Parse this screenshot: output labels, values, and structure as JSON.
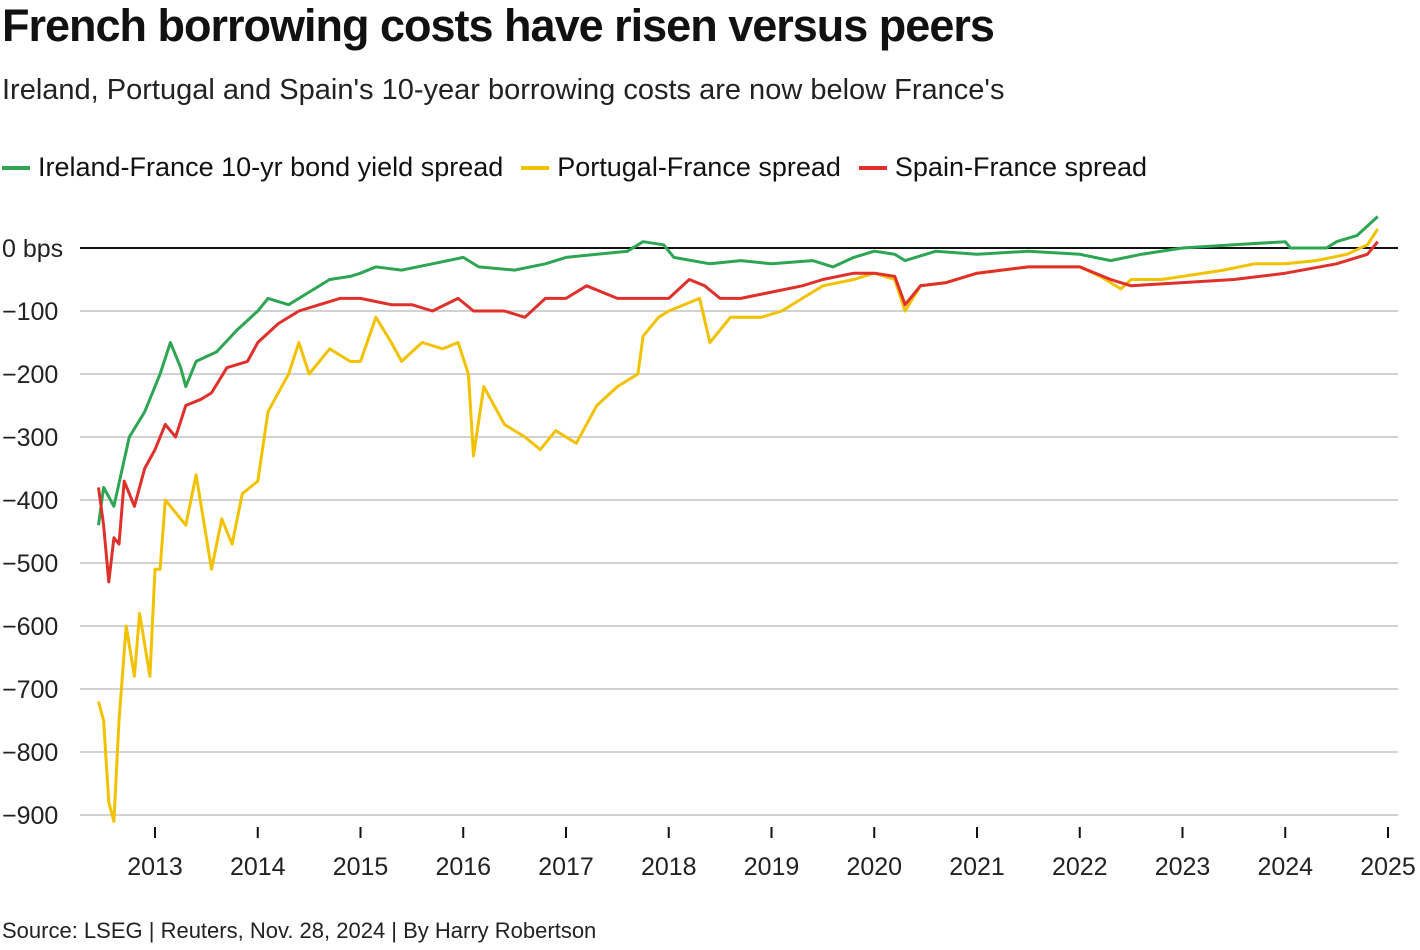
{
  "title": "French borrowing costs have risen versus peers",
  "subtitle": "Ireland, Portugal and Spain's 10-year borrowing costs are now below France's",
  "source": "Source: LSEG | Reuters, Nov. 28, 2024 | By Harry Robertson",
  "chart_data": {
    "type": "line",
    "title": "French borrowing costs have risen versus peers",
    "ylim": [
      -920,
      70
    ],
    "xlim": [
      2012.4,
      2025
    ],
    "grid": true,
    "legend_position": "top",
    "y_ticks": [
      {
        "v": 0,
        "label": "0 bps"
      },
      {
        "v": -100,
        "label": "−100"
      },
      {
        "v": -200,
        "label": "−200"
      },
      {
        "v": -300,
        "label": "−300"
      },
      {
        "v": -400,
        "label": "−400"
      },
      {
        "v": -500,
        "label": "−500"
      },
      {
        "v": -600,
        "label": "−600"
      },
      {
        "v": -700,
        "label": "−700"
      },
      {
        "v": -800,
        "label": "−800"
      },
      {
        "v": -900,
        "label": "−900"
      }
    ],
    "x_ticks": [
      "2013",
      "2014",
      "2015",
      "2016",
      "2017",
      "2018",
      "2019",
      "2020",
      "2021",
      "2022",
      "2023",
      "2024",
      "2025"
    ],
    "series": [
      {
        "name": "Ireland-France 10-yr bond yield spread",
        "color": "#2ea552",
        "points": [
          [
            2012.45,
            -440
          ],
          [
            2012.5,
            -380
          ],
          [
            2012.6,
            -410
          ],
          [
            2012.75,
            -300
          ],
          [
            2012.9,
            -260
          ],
          [
            2013.05,
            -200
          ],
          [
            2013.15,
            -150
          ],
          [
            2013.25,
            -190
          ],
          [
            2013.3,
            -220
          ],
          [
            2013.4,
            -180
          ],
          [
            2013.6,
            -165
          ],
          [
            2013.8,
            -130
          ],
          [
            2014.0,
            -100
          ],
          [
            2014.1,
            -80
          ],
          [
            2014.3,
            -90
          ],
          [
            2014.5,
            -70
          ],
          [
            2014.7,
            -50
          ],
          [
            2014.9,
            -45
          ],
          [
            2015.0,
            -40
          ],
          [
            2015.15,
            -30
          ],
          [
            2015.4,
            -35
          ],
          [
            2015.7,
            -25
          ],
          [
            2016.0,
            -15
          ],
          [
            2016.15,
            -30
          ],
          [
            2016.5,
            -35
          ],
          [
            2016.8,
            -25
          ],
          [
            2017.0,
            -15
          ],
          [
            2017.3,
            -10
          ],
          [
            2017.6,
            -5
          ],
          [
            2017.75,
            10
          ],
          [
            2017.95,
            5
          ],
          [
            2018.05,
            -15
          ],
          [
            2018.4,
            -25
          ],
          [
            2018.7,
            -20
          ],
          [
            2019.0,
            -25
          ],
          [
            2019.4,
            -20
          ],
          [
            2019.6,
            -30
          ],
          [
            2019.8,
            -15
          ],
          [
            2020.0,
            -5
          ],
          [
            2020.2,
            -10
          ],
          [
            2020.3,
            -20
          ],
          [
            2020.6,
            -5
          ],
          [
            2021.0,
            -10
          ],
          [
            2021.5,
            -5
          ],
          [
            2022.0,
            -10
          ],
          [
            2022.3,
            -20
          ],
          [
            2022.6,
            -10
          ],
          [
            2023.0,
            0
          ],
          [
            2023.5,
            5
          ],
          [
            2024.0,
            10
          ],
          [
            2024.05,
            0
          ],
          [
            2024.4,
            0
          ],
          [
            2024.5,
            10
          ],
          [
            2024.7,
            20
          ],
          [
            2024.9,
            50
          ]
        ]
      },
      {
        "name": "Portugal-France spread",
        "color": "#f2c200",
        "points": [
          [
            2012.45,
            -720
          ],
          [
            2012.5,
            -750
          ],
          [
            2012.55,
            -880
          ],
          [
            2012.6,
            -910
          ],
          [
            2012.65,
            -750
          ],
          [
            2012.72,
            -600
          ],
          [
            2012.8,
            -680
          ],
          [
            2012.85,
            -580
          ],
          [
            2012.95,
            -680
          ],
          [
            2013.0,
            -510
          ],
          [
            2013.05,
            -510
          ],
          [
            2013.1,
            -400
          ],
          [
            2013.2,
            -420
          ],
          [
            2013.3,
            -440
          ],
          [
            2013.4,
            -360
          ],
          [
            2013.5,
            -460
          ],
          [
            2013.55,
            -510
          ],
          [
            2013.65,
            -430
          ],
          [
            2013.75,
            -470
          ],
          [
            2013.85,
            -390
          ],
          [
            2014.0,
            -370
          ],
          [
            2014.1,
            -260
          ],
          [
            2014.3,
            -200
          ],
          [
            2014.4,
            -150
          ],
          [
            2014.5,
            -200
          ],
          [
            2014.7,
            -160
          ],
          [
            2014.9,
            -180
          ],
          [
            2015.0,
            -180
          ],
          [
            2015.15,
            -110
          ],
          [
            2015.3,
            -150
          ],
          [
            2015.4,
            -180
          ],
          [
            2015.6,
            -150
          ],
          [
            2015.8,
            -160
          ],
          [
            2015.95,
            -150
          ],
          [
            2016.05,
            -200
          ],
          [
            2016.1,
            -330
          ],
          [
            2016.2,
            -220
          ],
          [
            2016.4,
            -280
          ],
          [
            2016.6,
            -300
          ],
          [
            2016.75,
            -320
          ],
          [
            2016.9,
            -290
          ],
          [
            2017.1,
            -310
          ],
          [
            2017.3,
            -250
          ],
          [
            2017.5,
            -220
          ],
          [
            2017.7,
            -200
          ],
          [
            2017.75,
            -140
          ],
          [
            2017.9,
            -110
          ],
          [
            2018.0,
            -100
          ],
          [
            2018.3,
            -80
          ],
          [
            2018.4,
            -150
          ],
          [
            2018.6,
            -110
          ],
          [
            2018.9,
            -110
          ],
          [
            2019.1,
            -100
          ],
          [
            2019.3,
            -80
          ],
          [
            2019.5,
            -60
          ],
          [
            2019.8,
            -50
          ],
          [
            2020.0,
            -40
          ],
          [
            2020.2,
            -50
          ],
          [
            2020.3,
            -100
          ],
          [
            2020.45,
            -60
          ],
          [
            2020.7,
            -55
          ],
          [
            2021.0,
            -40
          ],
          [
            2021.5,
            -30
          ],
          [
            2022.0,
            -30
          ],
          [
            2022.2,
            -45
          ],
          [
            2022.4,
            -65
          ],
          [
            2022.5,
            -50
          ],
          [
            2022.8,
            -50
          ],
          [
            2023.0,
            -45
          ],
          [
            2023.4,
            -35
          ],
          [
            2023.7,
            -25
          ],
          [
            2024.0,
            -25
          ],
          [
            2024.3,
            -20
          ],
          [
            2024.6,
            -10
          ],
          [
            2024.8,
            5
          ],
          [
            2024.9,
            30
          ]
        ]
      },
      {
        "name": "Spain-France spread",
        "color": "#e0302b",
        "points": [
          [
            2012.45,
            -380
          ],
          [
            2012.5,
            -440
          ],
          [
            2012.55,
            -530
          ],
          [
            2012.6,
            -460
          ],
          [
            2012.65,
            -470
          ],
          [
            2012.7,
            -370
          ],
          [
            2012.8,
            -410
          ],
          [
            2012.9,
            -350
          ],
          [
            2013.0,
            -320
          ],
          [
            2013.1,
            -280
          ],
          [
            2013.2,
            -300
          ],
          [
            2013.3,
            -250
          ],
          [
            2013.45,
            -240
          ],
          [
            2013.55,
            -230
          ],
          [
            2013.7,
            -190
          ],
          [
            2013.9,
            -180
          ],
          [
            2014.0,
            -150
          ],
          [
            2014.2,
            -120
          ],
          [
            2014.4,
            -100
          ],
          [
            2014.6,
            -90
          ],
          [
            2014.8,
            -80
          ],
          [
            2015.0,
            -80
          ],
          [
            2015.3,
            -90
          ],
          [
            2015.5,
            -90
          ],
          [
            2015.7,
            -100
          ],
          [
            2015.95,
            -80
          ],
          [
            2016.1,
            -100
          ],
          [
            2016.4,
            -100
          ],
          [
            2016.6,
            -110
          ],
          [
            2016.8,
            -80
          ],
          [
            2017.0,
            -80
          ],
          [
            2017.2,
            -60
          ],
          [
            2017.5,
            -80
          ],
          [
            2017.8,
            -80
          ],
          [
            2018.0,
            -80
          ],
          [
            2018.2,
            -50
          ],
          [
            2018.35,
            -60
          ],
          [
            2018.5,
            -80
          ],
          [
            2018.7,
            -80
          ],
          [
            2019.0,
            -70
          ],
          [
            2019.3,
            -60
          ],
          [
            2019.5,
            -50
          ],
          [
            2019.8,
            -40
          ],
          [
            2020.0,
            -40
          ],
          [
            2020.2,
            -45
          ],
          [
            2020.3,
            -90
          ],
          [
            2020.45,
            -60
          ],
          [
            2020.7,
            -55
          ],
          [
            2021.0,
            -40
          ],
          [
            2021.5,
            -30
          ],
          [
            2022.0,
            -30
          ],
          [
            2022.3,
            -50
          ],
          [
            2022.5,
            -60
          ],
          [
            2023.0,
            -55
          ],
          [
            2023.5,
            -50
          ],
          [
            2024.0,
            -40
          ],
          [
            2024.5,
            -25
          ],
          [
            2024.8,
            -10
          ],
          [
            2024.9,
            10
          ]
        ]
      }
    ]
  }
}
